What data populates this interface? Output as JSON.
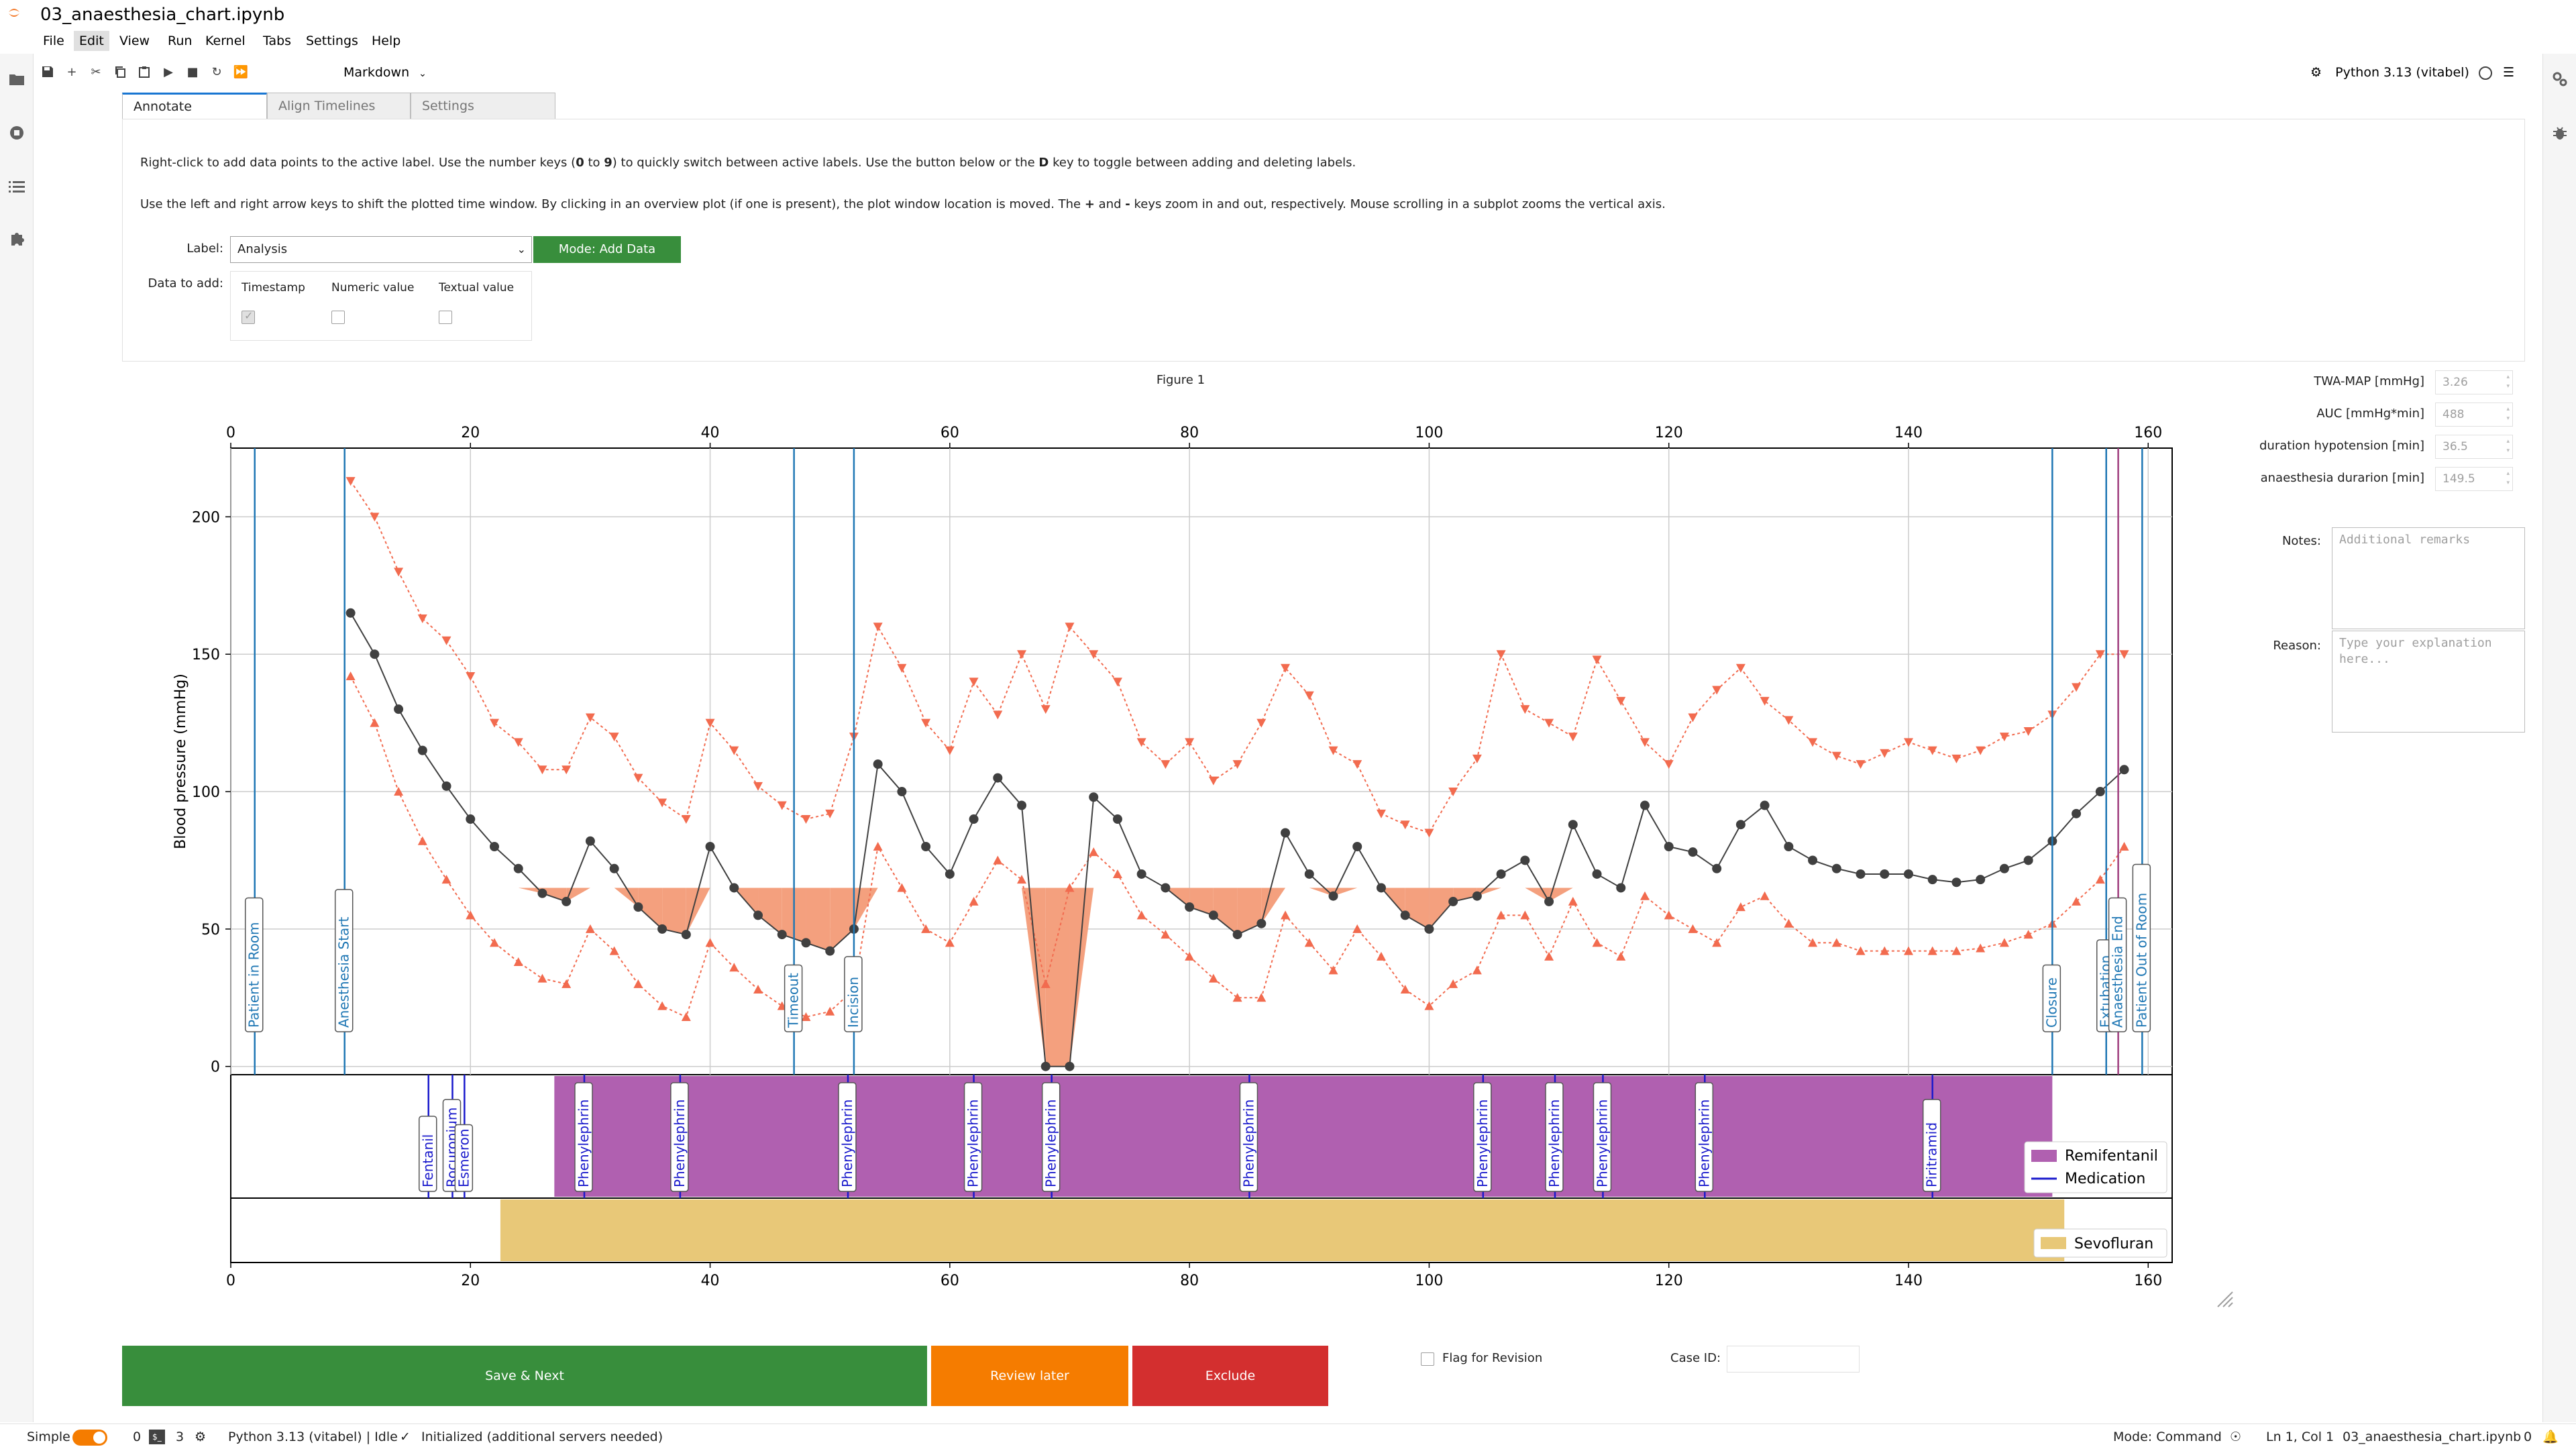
{
  "window": {
    "title": "03_anaesthesia_chart.ipynb"
  },
  "menu": [
    "File",
    "Edit",
    "View",
    "Run",
    "Kernel",
    "Tabs",
    "Settings",
    "Help"
  ],
  "toolbar": {
    "cell_type": "Markdown",
    "kernel": "Python 3.13 (vitabel)"
  },
  "tabs": [
    "Annotate",
    "Align Timelines",
    "Settings"
  ],
  "annotate": {
    "instructions_1_pre": "Right-click to add data points to the active label. Use the number keys (",
    "instructions_1_key_a": "0",
    "instructions_1_mid": " to ",
    "instructions_1_key_b": "9",
    "instructions_1_post": ") to quickly switch between active labels. Use the button below or the ",
    "instructions_1_key_c": "D",
    "instructions_1_end": " key to toggle between adding and deleting labels.",
    "instructions_2_pre": "Use the left and right arrow keys to shift the plotted time window. By clicking in an overview plot (if one is present), the plot window location is moved. The ",
    "instructions_2_key_a": "+",
    "instructions_2_mid": " and ",
    "instructions_2_key_b": "-",
    "instructions_2_end": " keys zoom in and out, respectively. Mouse scrolling in a subplot zooms the vertical axis.",
    "label_caption": "Label:",
    "label_value": "Analysis",
    "mode_button": "Mode: Add Data",
    "data_to_add_caption": "Data to add:",
    "options": [
      {
        "label": "Timestamp",
        "checked": true
      },
      {
        "label": "Numeric value",
        "checked": false
      },
      {
        "label": "Textual value",
        "checked": false
      }
    ]
  },
  "figure": {
    "title": "Figure 1"
  },
  "stats": [
    {
      "label": "TWA-MAP [mmHg]",
      "value": "3.26"
    },
    {
      "label": "AUC [mmHg*min]",
      "value": "488"
    },
    {
      "label": "duration hypotension [min]",
      "value": "36.5"
    },
    {
      "label": "anaesthesia durarion [min]",
      "value": "149.5"
    }
  ],
  "notes": {
    "label": "Notes:",
    "placeholder": "Additional remarks"
  },
  "reason": {
    "label": "Reason:",
    "placeholder": "Type your explanation here..."
  },
  "actions": {
    "save_next": "Save & Next",
    "review_later": "Review later",
    "exclude": "Exclude",
    "flag_label": "Flag for Revision",
    "case_id_label": "Case ID:"
  },
  "statusbar": {
    "mode_label": "Simple",
    "count_a": "0",
    "count_b": "3",
    "kernel_status": "Python 3.13 (vitabel) | Idle",
    "init_status": "Initialized (additional servers needed)",
    "mode": "Mode: Command",
    "cursor": "Ln 1, Col 1",
    "file": "03_anaesthesia_chart.ipynb",
    "bell_count": "0"
  },
  "colors": {
    "systolic": "#f26b4f",
    "diastolic": "#f26b4f",
    "map": "#404040",
    "hypotension_fill": "#f4a07e",
    "remifentanil": "#b060b0",
    "sevofluran": "#e8c878",
    "event_line": "#1f77b4",
    "medication": "#1a1acc",
    "save": "#388e3c",
    "review": "#f57c00",
    "exclude": "#d32f2f"
  },
  "chart_data": {
    "type": "line",
    "ylabel": "Blood pressure (mmHg)",
    "xlim": [
      0,
      162
    ],
    "ylim": [
      -3,
      225
    ],
    "xticks": [
      0,
      20,
      40,
      60,
      80,
      100,
      120,
      140,
      160
    ],
    "yticks": [
      0,
      50,
      100,
      150,
      200
    ],
    "hypotension_threshold": 65,
    "series": [
      {
        "name": "systolic",
        "x": [
          10,
          12,
          14,
          16,
          18,
          20,
          22,
          24,
          26,
          28,
          30,
          32,
          34,
          36,
          38,
          40,
          42,
          44,
          46,
          48,
          50,
          52,
          54,
          56,
          58,
          60,
          62,
          64,
          66,
          68,
          70,
          72,
          74,
          76,
          78,
          80,
          82,
          84,
          86,
          88,
          90,
          92,
          94,
          96,
          98,
          100,
          102,
          104,
          106,
          108,
          110,
          112,
          114,
          116,
          118,
          120,
          122,
          124,
          126,
          128,
          130,
          132,
          134,
          136,
          138,
          140,
          142,
          144,
          146,
          148,
          150,
          152,
          154,
          156,
          158
        ],
        "values": [
          213,
          200,
          180,
          163,
          155,
          142,
          125,
          118,
          108,
          108,
          127,
          120,
          105,
          96,
          90,
          125,
          115,
          102,
          95,
          90,
          92,
          120,
          160,
          145,
          125,
          115,
          140,
          128,
          150,
          130,
          160,
          150,
          140,
          118,
          110,
          118,
          104,
          110,
          125,
          145,
          135,
          115,
          110,
          92,
          88,
          85,
          100,
          112,
          150,
          130,
          125,
          120,
          148,
          133,
          118,
          110,
          127,
          137,
          145,
          133,
          126,
          118,
          113,
          110,
          114,
          118,
          115,
          112,
          115,
          120,
          122,
          128,
          138,
          150,
          150
        ]
      },
      {
        "name": "MAP",
        "x": [
          10,
          12,
          14,
          16,
          18,
          20,
          22,
          24,
          26,
          28,
          30,
          32,
          34,
          36,
          38,
          40,
          42,
          44,
          46,
          48,
          50,
          52,
          54,
          56,
          58,
          60,
          62,
          64,
          66,
          68,
          70,
          72,
          74,
          76,
          78,
          80,
          82,
          84,
          86,
          88,
          90,
          92,
          94,
          96,
          98,
          100,
          102,
          104,
          106,
          108,
          110,
          112,
          114,
          116,
          118,
          120,
          122,
          124,
          126,
          128,
          130,
          132,
          134,
          136,
          138,
          140,
          142,
          144,
          146,
          148,
          150,
          152,
          154,
          156,
          158
        ],
        "values": [
          165,
          150,
          130,
          115,
          102,
          90,
          80,
          72,
          63,
          60,
          82,
          72,
          58,
          50,
          48,
          80,
          65,
          55,
          48,
          45,
          42,
          50,
          110,
          100,
          80,
          70,
          90,
          105,
          95,
          0,
          0,
          98,
          90,
          70,
          65,
          58,
          55,
          48,
          52,
          85,
          70,
          62,
          80,
          65,
          55,
          50,
          60,
          62,
          70,
          75,
          60,
          88,
          70,
          65,
          95,
          80,
          78,
          72,
          88,
          95,
          80,
          75,
          72,
          70,
          70,
          70,
          68,
          67,
          68,
          72,
          75,
          82,
          92,
          100,
          108
        ]
      },
      {
        "name": "diastolic",
        "x": [
          10,
          12,
          14,
          16,
          18,
          20,
          22,
          24,
          26,
          28,
          30,
          32,
          34,
          36,
          38,
          40,
          42,
          44,
          46,
          48,
          50,
          52,
          54,
          56,
          58,
          60,
          62,
          64,
          66,
          68,
          70,
          72,
          74,
          76,
          78,
          80,
          82,
          84,
          86,
          88,
          90,
          92,
          94,
          96,
          98,
          100,
          102,
          104,
          106,
          108,
          110,
          112,
          114,
          116,
          118,
          120,
          122,
          124,
          126,
          128,
          130,
          132,
          134,
          136,
          138,
          140,
          142,
          144,
          146,
          148,
          150,
          152,
          154,
          156,
          158
        ],
        "values": [
          142,
          125,
          100,
          82,
          68,
          55,
          45,
          38,
          32,
          30,
          50,
          42,
          30,
          22,
          18,
          45,
          36,
          28,
          22,
          18,
          20,
          28,
          80,
          65,
          50,
          45,
          60,
          75,
          68,
          30,
          65,
          78,
          70,
          55,
          48,
          40,
          32,
          25,
          25,
          55,
          45,
          35,
          50,
          40,
          28,
          22,
          30,
          35,
          55,
          55,
          40,
          60,
          45,
          40,
          62,
          55,
          50,
          45,
          58,
          62,
          52,
          45,
          45,
          42,
          42,
          42,
          42,
          42,
          43,
          45,
          48,
          52,
          60,
          68,
          80
        ]
      }
    ],
    "events": [
      {
        "label": "Patient in Room",
        "x": 2
      },
      {
        "label": "Anesthesia Start",
        "x": 9.5
      },
      {
        "label": "Timeout",
        "x": 47
      },
      {
        "label": "Incision",
        "x": 52
      },
      {
        "label": "Closure",
        "x": 152
      },
      {
        "label": "Extubation",
        "x": 156.5
      },
      {
        "label": "Anaesthesia End",
        "x": 157.5
      },
      {
        "label": "Patient Out of Room",
        "x": 159.5
      }
    ],
    "medications": [
      {
        "label": "Fentanil",
        "x": 16.5
      },
      {
        "label": "Rocuronium",
        "x": 18.5
      },
      {
        "label": "Esmeron",
        "x": 19.5
      },
      {
        "label": "Phenylephrin",
        "x": 29.5
      },
      {
        "label": "Phenylephrin",
        "x": 37.5
      },
      {
        "label": "Phenylephrin",
        "x": 51.5
      },
      {
        "label": "Phenylephrin",
        "x": 62
      },
      {
        "label": "Phenylephrin",
        "x": 68.5
      },
      {
        "label": "Phenylephrin",
        "x": 85
      },
      {
        "label": "Phenylephrin",
        "x": 104.5
      },
      {
        "label": "Phenylephrin",
        "x": 110.5
      },
      {
        "label": "Phenylephrin",
        "x": 114.5
      },
      {
        "label": "Phenylephrin",
        "x": 123
      },
      {
        "label": "Piritramid",
        "x": 142
      }
    ],
    "infusions": [
      {
        "name": "Remifentanil",
        "start": 27,
        "end": 152
      },
      {
        "name": "Sevofluran",
        "start": 22.5,
        "end": 153
      }
    ],
    "legend": [
      "Remifentanil",
      "Medication",
      "Sevofluran"
    ],
    "legend_placement": "lower-right"
  }
}
